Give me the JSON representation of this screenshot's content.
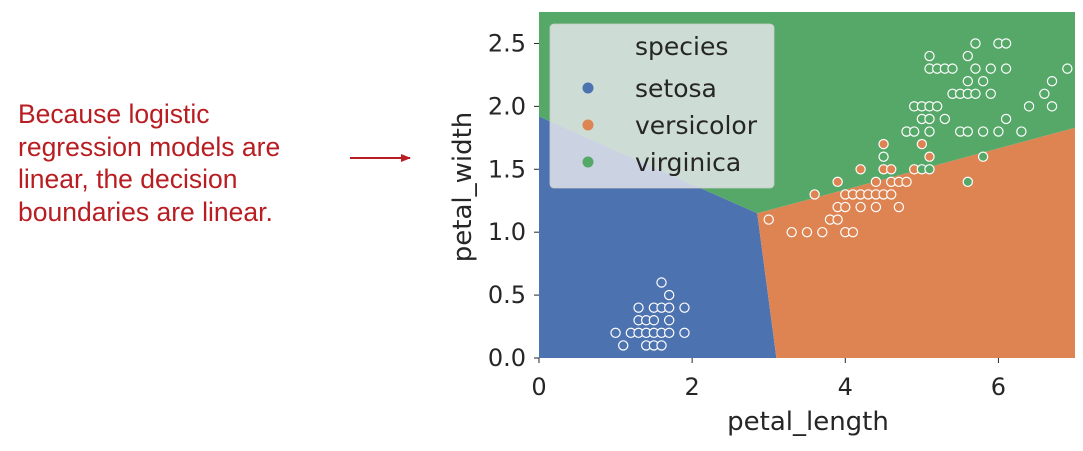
{
  "annotation": {
    "lines": [
      "Because logistic",
      "regression models are",
      "linear, the decision",
      "boundaries are linear."
    ],
    "color": "#b81d22"
  },
  "chart_data": {
    "type": "scatter",
    "xlabel": "petal_length",
    "ylabel": "petal_width",
    "xlim": [
      0,
      7
    ],
    "ylim": [
      0,
      2.75
    ],
    "xticks": [
      0,
      2,
      4,
      6
    ],
    "yticks": [
      0.0,
      0.5,
      1.0,
      1.5,
      2.0,
      2.5
    ],
    "ytick_labels": [
      "0.0",
      "0.5",
      "1.0",
      "1.5",
      "2.0",
      "2.5"
    ],
    "grid": false,
    "legend": {
      "title": "species",
      "placement": "top-left"
    },
    "colors": {
      "setosa": "#4c72b0",
      "versicolor": "#dd8452",
      "virginica": "#55a868"
    },
    "decision_regions": {
      "setosa": [
        [
          0,
          0
        ],
        [
          3.1,
          0
        ],
        [
          2.85,
          1.15
        ],
        [
          0,
          1.92
        ]
      ],
      "versicolor": [
        [
          3.1,
          0
        ],
        [
          7,
          0
        ],
        [
          7,
          1.83
        ],
        [
          2.85,
          1.15
        ]
      ],
      "virginica": [
        [
          0,
          1.92
        ],
        [
          2.85,
          1.15
        ],
        [
          7,
          1.83
        ],
        [
          7,
          2.75
        ],
        [
          0,
          2.75
        ]
      ]
    },
    "series": [
      {
        "name": "setosa",
        "points": [
          [
            1.0,
            0.2
          ],
          [
            1.1,
            0.1
          ],
          [
            1.2,
            0.2
          ],
          [
            1.3,
            0.2
          ],
          [
            1.3,
            0.3
          ],
          [
            1.3,
            0.4
          ],
          [
            1.4,
            0.1
          ],
          [
            1.4,
            0.2
          ],
          [
            1.4,
            0.3
          ],
          [
            1.5,
            0.1
          ],
          [
            1.5,
            0.2
          ],
          [
            1.5,
            0.3
          ],
          [
            1.5,
            0.4
          ],
          [
            1.6,
            0.1
          ],
          [
            1.6,
            0.2
          ],
          [
            1.6,
            0.4
          ],
          [
            1.6,
            0.6
          ],
          [
            1.7,
            0.2
          ],
          [
            1.7,
            0.3
          ],
          [
            1.7,
            0.4
          ],
          [
            1.7,
            0.5
          ],
          [
            1.9,
            0.2
          ],
          [
            1.9,
            0.4
          ]
        ]
      },
      {
        "name": "versicolor",
        "points": [
          [
            3.0,
            1.1
          ],
          [
            3.3,
            1.0
          ],
          [
            3.5,
            1.0
          ],
          [
            3.6,
            1.3
          ],
          [
            3.7,
            1.0
          ],
          [
            3.8,
            1.1
          ],
          [
            3.9,
            1.1
          ],
          [
            3.9,
            1.2
          ],
          [
            3.9,
            1.4
          ],
          [
            4.0,
            1.0
          ],
          [
            4.0,
            1.2
          ],
          [
            4.0,
            1.3
          ],
          [
            4.1,
            1.0
          ],
          [
            4.1,
            1.3
          ],
          [
            4.2,
            1.2
          ],
          [
            4.2,
            1.3
          ],
          [
            4.2,
            1.5
          ],
          [
            4.3,
            1.3
          ],
          [
            4.4,
            1.2
          ],
          [
            4.4,
            1.3
          ],
          [
            4.4,
            1.4
          ],
          [
            4.5,
            1.3
          ],
          [
            4.5,
            1.5
          ],
          [
            4.5,
            1.7
          ],
          [
            4.6,
            1.3
          ],
          [
            4.6,
            1.4
          ],
          [
            4.6,
            1.5
          ],
          [
            4.7,
            1.2
          ],
          [
            4.7,
            1.4
          ],
          [
            4.8,
            1.4
          ],
          [
            4.8,
            1.8
          ],
          [
            4.9,
            1.5
          ],
          [
            5.0,
            1.7
          ],
          [
            5.1,
            1.6
          ]
        ]
      },
      {
        "name": "virginica",
        "points": [
          [
            4.5,
            1.6
          ],
          [
            4.8,
            1.8
          ],
          [
            4.9,
            1.8
          ],
          [
            4.9,
            2.0
          ],
          [
            5.0,
            1.5
          ],
          [
            5.0,
            1.9
          ],
          [
            5.0,
            2.0
          ],
          [
            5.1,
            1.5
          ],
          [
            5.1,
            1.8
          ],
          [
            5.1,
            1.9
          ],
          [
            5.1,
            2.0
          ],
          [
            5.1,
            2.3
          ],
          [
            5.1,
            2.4
          ],
          [
            5.2,
            2.0
          ],
          [
            5.2,
            2.3
          ],
          [
            5.3,
            1.9
          ],
          [
            5.3,
            2.3
          ],
          [
            5.4,
            2.1
          ],
          [
            5.4,
            2.3
          ],
          [
            5.5,
            1.8
          ],
          [
            5.5,
            2.1
          ],
          [
            5.6,
            1.4
          ],
          [
            5.6,
            1.8
          ],
          [
            5.6,
            2.1
          ],
          [
            5.6,
            2.2
          ],
          [
            5.6,
            2.4
          ],
          [
            5.7,
            2.1
          ],
          [
            5.7,
            2.3
          ],
          [
            5.7,
            2.5
          ],
          [
            5.8,
            1.6
          ],
          [
            5.8,
            1.8
          ],
          [
            5.8,
            2.2
          ],
          [
            5.9,
            2.1
          ],
          [
            5.9,
            2.3
          ],
          [
            6.0,
            1.8
          ],
          [
            6.0,
            2.5
          ],
          [
            6.1,
            1.9
          ],
          [
            6.1,
            2.3
          ],
          [
            6.1,
            2.5
          ],
          [
            6.3,
            1.8
          ],
          [
            6.4,
            2.0
          ],
          [
            6.6,
            2.1
          ],
          [
            6.7,
            2.0
          ],
          [
            6.7,
            2.2
          ],
          [
            6.9,
            2.3
          ]
        ]
      }
    ]
  }
}
